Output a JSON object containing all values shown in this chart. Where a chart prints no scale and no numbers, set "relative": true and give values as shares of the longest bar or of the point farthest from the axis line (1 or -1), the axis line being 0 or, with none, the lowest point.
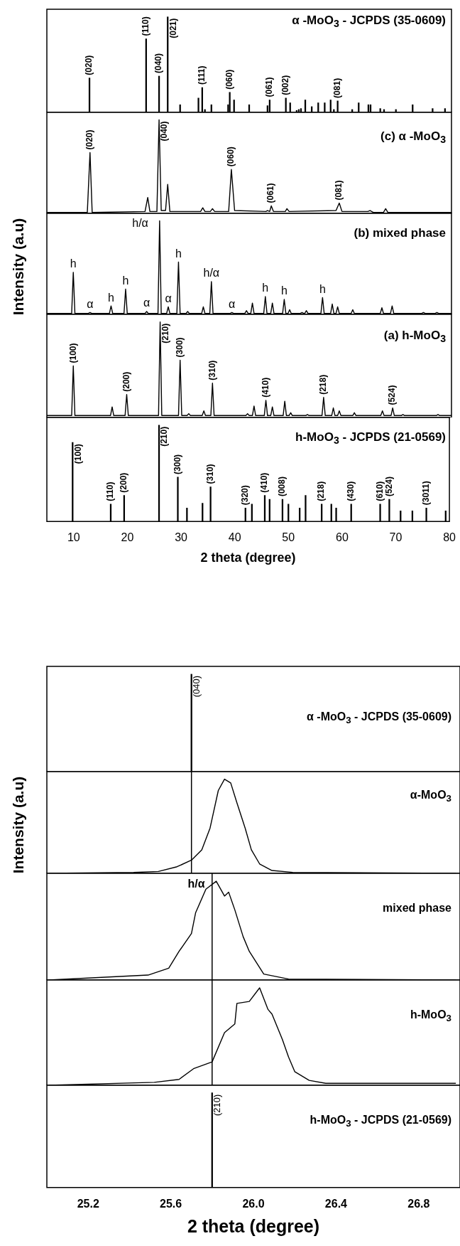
{
  "chart_data": [
    {
      "type": "bar",
      "relative": true,
      "title": "α -MoO$_{3}$ - JCPDS (35-0609)",
      "color": "#000000",
      "xlim": [
        5,
        80
      ],
      "tick_labels": false,
      "x": [
        12.9,
        23.4,
        25.8,
        27.4,
        29.7,
        33.1,
        33.8,
        34.3,
        35.5,
        38.6,
        38.9,
        39.7,
        42.5,
        45.9,
        46.3,
        49.3,
        50.1,
        51.3,
        51.7,
        52.1,
        52.9,
        54.1,
        55.3,
        56.5,
        57.6,
        58.2,
        58.9,
        61.6,
        62.8,
        64.6,
        65.0,
        66.8,
        67.5,
        69.7,
        72.8,
        76.5,
        78.8
      ],
      "values": [
        0.36,
        0.77,
        0.38,
        1,
        0.08,
        0.15,
        0.26,
        0.03,
        0.08,
        0.08,
        0.21,
        0.13,
        0.08,
        0.07,
        0.13,
        0.15,
        0.1,
        0.02,
        0.03,
        0.04,
        0.13,
        0.06,
        0.1,
        0.1,
        0.13,
        0.03,
        0.12,
        0.03,
        0.1,
        0.08,
        0.08,
        0.04,
        0.03,
        0.03,
        0.08,
        0.04,
        0.04
      ],
      "annotations": [
        {
          "text": "(020)",
          "x": 12.9,
          "y": 0.36
        },
        {
          "text": "(110)",
          "x": 23.4,
          "y": 0.77
        },
        {
          "text": "(040)",
          "x": 25.8,
          "y": 0.38
        },
        {
          "text": "(021)",
          "x": 27.4,
          "y": 1
        },
        {
          "text": "(111)",
          "x": 33.8,
          "y": 0.26
        },
        {
          "text": "(060)",
          "x": 38.9,
          "y": 0.21
        },
        {
          "text": "(061)",
          "x": 46.3,
          "y": 0.13
        },
        {
          "text": "(002)",
          "x": 49.3,
          "y": 0.15
        },
        {
          "text": "(081)",
          "x": 58.9,
          "y": 0.12
        }
      ]
    },
    {
      "type": "line",
      "relative": true,
      "title": "(c) α -MoO$_{3}$",
      "color": "#000000",
      "marker": "none",
      "xlim": [
        5,
        80
      ],
      "tick_labels": false,
      "x": [
        5,
        12.5,
        13.0,
        13.4,
        23.2,
        23.7,
        24.1,
        25.4,
        25.8,
        26.2,
        27.0,
        27.4,
        27.8,
        33.5,
        33.9,
        34.3,
        35.3,
        35.7,
        36.1,
        38.7,
        39.2,
        39.8,
        45.6,
        45.9,
        46.3,
        46.6,
        47.0,
        49.2,
        49.5,
        49.9,
        58.6,
        59.2,
        59.7,
        64.5,
        64.9,
        65.5,
        67.4,
        67.8,
        68.2,
        80
      ],
      "values": [
        0.01,
        0.01,
        0.65,
        0.01,
        0.02,
        0.17,
        0.02,
        0.02,
        1,
        0.03,
        0.03,
        0.31,
        0.02,
        0.02,
        0.06,
        0.02,
        0.02,
        0.05,
        0.02,
        0.02,
        0.47,
        0.03,
        0.02,
        0.03,
        0.02,
        0.08,
        0.02,
        0.02,
        0.05,
        0.02,
        0.03,
        0.11,
        0.02,
        0.02,
        0.03,
        0.01,
        0.01,
        0.05,
        0.01,
        0.01
      ],
      "annotations": [
        {
          "text": "(020)",
          "x": 13.0,
          "y": 0.65
        },
        {
          "text": "(040)",
          "x": 25.8,
          "y": 1
        },
        {
          "text": "(060)",
          "x": 39.2,
          "y": 0.47
        },
        {
          "text": "(061)",
          "x": 46.6,
          "y": 0.08
        },
        {
          "text": "(081)",
          "x": 59.2,
          "y": 0.11
        }
      ]
    },
    {
      "type": "line",
      "relative": true,
      "title": "(b) mixed phase",
      "ylabel": "Intensity (a.u)",
      "color": "#000000",
      "marker": "none",
      "xlim": [
        5,
        80
      ],
      "tick_labels": false,
      "x": [
        5,
        9.6,
        9.9,
        10.2,
        12.7,
        13.0,
        13.3,
        16.6,
        16.9,
        17.2,
        19.3,
        19.6,
        19.9,
        23.2,
        23.5,
        23.8,
        25.6,
        25.9,
        26.2,
        27.2,
        27.5,
        27.8,
        29.1,
        29.4,
        29.7,
        30.8,
        31.1,
        31.4,
        33.7,
        34.0,
        34.3,
        35.2,
        35.5,
        35.8,
        39.0,
        39.3,
        39.6,
        41.7,
        42.0,
        42.3,
        42.8,
        43.1,
        43.4,
        45.2,
        45.5,
        45.8,
        46.5,
        46.8,
        47.1,
        48.7,
        49.0,
        49.3,
        49.7,
        50.0,
        50.3,
        52.0,
        52.3,
        52.6,
        52.8,
        53.1,
        53.4,
        55.8,
        56.1,
        56.4,
        57.6,
        57.9,
        58.2,
        58.6,
        58.9,
        59.2,
        61.4,
        61.7,
        62.0,
        66.8,
        67.1,
        67.4,
        68.7,
        69.0,
        69.3,
        74.5,
        74.8,
        75.1,
        77.0,
        77.3,
        77.6,
        80
      ],
      "values": [
        0.01,
        0.01,
        0.45,
        0.01,
        0.01,
        0.02,
        0.01,
        0.01,
        0.09,
        0.01,
        0.01,
        0.27,
        0.01,
        0.01,
        0.03,
        0.01,
        0.01,
        1,
        0.01,
        0.01,
        0.08,
        0.01,
        0.01,
        0.56,
        0.01,
        0.01,
        0.03,
        0.01,
        0.01,
        0.08,
        0.01,
        0.01,
        0.35,
        0.01,
        0.01,
        0.02,
        0.01,
        0.01,
        0.04,
        0.01,
        0.01,
        0.12,
        0.01,
        0.01,
        0.19,
        0.01,
        0.01,
        0.12,
        0.01,
        0.01,
        0.16,
        0.01,
        0.01,
        0.05,
        0.01,
        0.01,
        0.02,
        0.01,
        0.01,
        0.04,
        0.01,
        0.01,
        0.18,
        0.01,
        0.01,
        0.11,
        0.01,
        0.01,
        0.08,
        0.01,
        0.01,
        0.05,
        0.01,
        0.01,
        0.07,
        0.01,
        0.01,
        0.09,
        0.01,
        0.01,
        0.02,
        0.01,
        0.01,
        0.02,
        0.01,
        0.01
      ],
      "annotations": [
        {
          "text": "h",
          "x": 9.9,
          "y": 0.45
        },
        {
          "text": "α",
          "x": 13.0,
          "y": 0.02
        },
        {
          "text": "h",
          "x": 16.9,
          "y": 0.09
        },
        {
          "text": "h",
          "x": 19.6,
          "y": 0.27
        },
        {
          "text": "α",
          "x": 23.5,
          "y": 0.03
        },
        {
          "text": "h/α",
          "x": 25.9,
          "y": 1
        },
        {
          "text": "α",
          "x": 27.5,
          "y": 0.08
        },
        {
          "text": "h",
          "x": 29.4,
          "y": 0.56
        },
        {
          "text": "h/α",
          "x": 35.5,
          "y": 0.35
        },
        {
          "text": "α",
          "x": 39.3,
          "y": 0.02
        },
        {
          "text": "h",
          "x": 45.5,
          "y": 0.19
        },
        {
          "text": "h",
          "x": 49.0,
          "y": 0.16
        },
        {
          "text": "h",
          "x": 56.1,
          "y": 0.18
        }
      ]
    },
    {
      "type": "line",
      "relative": true,
      "title": "(a) h-MoO$_{3}$",
      "color": "#000000",
      "marker": "none",
      "xlim": [
        5,
        80
      ],
      "tick_labels": false,
      "x": [
        5,
        9.6,
        9.9,
        10.2,
        16.8,
        17.1,
        17.4,
        19.5,
        19.8,
        20.1,
        25.7,
        26.0,
        26.3,
        29.4,
        29.7,
        30.0,
        31.0,
        31.3,
        31.6,
        33.8,
        34.1,
        34.4,
        35.4,
        35.7,
        36.0,
        41.9,
        42.2,
        42.5,
        43.1,
        43.4,
        43.7,
        45.3,
        45.6,
        45.9,
        46.5,
        46.8,
        47.1,
        48.8,
        49.1,
        49.4,
        49.9,
        50.2,
        50.5,
        53.0,
        53.3,
        53.6,
        56.0,
        56.3,
        56.6,
        57.8,
        58.1,
        58.4,
        58.9,
        59.2,
        59.5,
        61.7,
        62.0,
        62.3,
        66.9,
        67.2,
        67.5,
        68.8,
        69.1,
        69.4,
        70.7,
        71.0,
        71.3,
        77.2,
        77.5,
        77.8,
        80
      ],
      "values": [
        0.02,
        0.02,
        0.54,
        0.02,
        0.02,
        0.11,
        0.02,
        0.02,
        0.24,
        0.02,
        0.02,
        1,
        0.02,
        0.02,
        0.6,
        0.02,
        0.02,
        0.04,
        0.02,
        0.02,
        0.07,
        0.02,
        0.02,
        0.36,
        0.02,
        0.02,
        0.04,
        0.02,
        0.02,
        0.12,
        0.02,
        0.02,
        0.18,
        0.02,
        0.02,
        0.11,
        0.02,
        0.02,
        0.17,
        0.02,
        0.02,
        0.05,
        0.02,
        0.02,
        0.03,
        0.02,
        0.02,
        0.21,
        0.02,
        0.02,
        0.1,
        0.02,
        0.02,
        0.07,
        0.02,
        0.02,
        0.05,
        0.02,
        0.02,
        0.07,
        0.02,
        0.02,
        0.1,
        0.02,
        0.02,
        0.03,
        0.02,
        0.02,
        0.03,
        0.02,
        0.02
      ],
      "annotations": [
        {
          "text": "(100)",
          "x": 9.9,
          "y": 0.54
        },
        {
          "text": "(200)",
          "x": 19.8,
          "y": 0.24
        },
        {
          "text": "(210)",
          "x": 26.0,
          "y": 1
        },
        {
          "text": "(300)",
          "x": 29.7,
          "y": 0.6
        },
        {
          "text": "(310)",
          "x": 35.7,
          "y": 0.36
        },
        {
          "text": "(410)",
          "x": 45.6,
          "y": 0.18
        },
        {
          "text": "(218)",
          "x": 56.3,
          "y": 0.21
        },
        {
          "text": "(524)",
          "x": 69.1,
          "y": 0.1
        }
      ]
    },
    {
      "type": "bar",
      "relative": true,
      "title": "h-MoO$_{3}$ - JCPDS (21-0569)",
      "xlabel": "2 theta (degree)",
      "color": "#000000",
      "xlim": [
        5,
        80
      ],
      "xticks": [
        10,
        20,
        30,
        40,
        50,
        60,
        70,
        80
      ],
      "tick_labels": "x",
      "x": [
        9.8,
        16.9,
        19.4,
        25.9,
        29.4,
        31.1,
        34.0,
        35.5,
        42.0,
        43.2,
        45.6,
        46.5,
        48.9,
        50.0,
        52.1,
        53.2,
        56.2,
        58.0,
        58.9,
        61.7,
        67.1,
        68.8,
        70.9,
        73.1,
        75.7,
        79.3
      ],
      "values": [
        0.82,
        0.18,
        0.27,
        1,
        0.46,
        0.14,
        0.19,
        0.36,
        0.14,
        0.18,
        0.27,
        0.23,
        0.23,
        0.18,
        0.14,
        0.27,
        0.18,
        0.18,
        0.14,
        0.18,
        0.18,
        0.23,
        0.11,
        0.11,
        0.14,
        0.11
      ],
      "annotations": [
        {
          "text": "(100)",
          "x": 9.8,
          "y": 0.82
        },
        {
          "text": "(110)",
          "x": 16.9,
          "y": 0.18
        },
        {
          "text": "(200)",
          "x": 19.4,
          "y": 0.27
        },
        {
          "text": "(210)",
          "x": 25.9,
          "y": 1
        },
        {
          "text": "(300)",
          "x": 29.4,
          "y": 0.46
        },
        {
          "text": "(310)",
          "x": 35.5,
          "y": 0.36
        },
        {
          "text": "(320)",
          "x": 42.0,
          "y": 0.14
        },
        {
          "text": "(410)",
          "x": 45.6,
          "y": 0.27
        },
        {
          "text": "(008)",
          "x": 48.9,
          "y": 0.23
        },
        {
          "text": "(218)",
          "x": 56.2,
          "y": 0.18
        },
        {
          "text": "(430)",
          "x": 61.7,
          "y": 0.18
        },
        {
          "text": "(610)",
          "x": 67.1,
          "y": 0.18
        },
        {
          "text": "(524)",
          "x": 68.8,
          "y": 0.23
        },
        {
          "text": "(3011)",
          "x": 75.7,
          "y": 0.14
        }
      ]
    },
    {
      "type": "bar",
      "relative": true,
      "title": "α -MoO$_{3}$ - JCPDS (35-0609)",
      "color": "#000000",
      "xlim": [
        25,
        27
      ],
      "tick_labels": false,
      "x": [
        25.7
      ],
      "values": [
        1
      ],
      "annotations": [
        {
          "text": "(040)",
          "x": 25.7,
          "y": 1
        }
      ]
    },
    {
      "type": "line",
      "relative": true,
      "title": "α-MoO$_{3}$",
      "color": "#000000",
      "marker": "none",
      "xlim": [
        25,
        27
      ],
      "tick_labels": false,
      "x": [
        25.01,
        25.42,
        25.54,
        25.63,
        25.7,
        25.75,
        25.79,
        25.83,
        25.86,
        25.89,
        25.92,
        25.96,
        25.99,
        26.03,
        26.09,
        26.19,
        26.98
      ],
      "values": [
        0,
        0.01,
        0.02,
        0.07,
        0.14,
        0.25,
        0.48,
        0.88,
        1,
        0.96,
        0.75,
        0.48,
        0.25,
        0.1,
        0.03,
        0.01,
        0
      ],
      "ref_lines": [
        {
          "axis": "x",
          "value": 25.7
        }
      ]
    },
    {
      "type": "line",
      "relative": true,
      "title": "mixed phase",
      "ylabel": "Intensity (a.u)",
      "color": "#000000",
      "marker": "none",
      "xlim": [
        25,
        27
      ],
      "tick_labels": false,
      "x": [
        25.01,
        25.49,
        25.59,
        25.64,
        25.7,
        25.72,
        25.77,
        25.82,
        25.86,
        25.88,
        25.91,
        25.95,
        25.98,
        26.05,
        26.17,
        26.98
      ],
      "values": [
        0,
        0.05,
        0.12,
        0.29,
        0.47,
        0.68,
        0.92,
        1,
        0.85,
        0.89,
        0.71,
        0.44,
        0.29,
        0.06,
        0.01,
        0
      ],
      "ref_lines": [
        {
          "axis": "x",
          "value": 25.8
        }
      ],
      "annotations": [
        {
          "text": "h/α",
          "x": 25.82,
          "y": 1
        }
      ]
    },
    {
      "type": "line",
      "relative": true,
      "title": "h-MoO$_{3}$",
      "color": "#000000",
      "marker": "none",
      "xlim": [
        25,
        27
      ],
      "tick_labels": false,
      "x": [
        25.01,
        25.52,
        25.64,
        25.71,
        25.8,
        25.86,
        25.91,
        25.92,
        25.98,
        26.03,
        26.07,
        26.09,
        26.14,
        26.17,
        26.2,
        26.27,
        26.35,
        26.98
      ],
      "values": [
        0,
        0.03,
        0.06,
        0.17,
        0.24,
        0.54,
        0.63,
        0.84,
        0.86,
        1,
        0.78,
        0.73,
        0.47,
        0.29,
        0.14,
        0.05,
        0.02,
        0.02
      ],
      "ref_lines": [
        {
          "axis": "x",
          "value": 25.8
        }
      ]
    },
    {
      "type": "bar",
      "relative": true,
      "title": "h-MoO$_{3}$ - JCPDS (21-0569)",
      "xlabel": "2 theta (degree)",
      "color": "#000000",
      "xlim": [
        25,
        27
      ],
      "xticks": [
        25.2,
        25.6,
        {
          "value": 26,
          "label": "26.0"
        },
        26.4,
        26.8
      ],
      "tick_labels": "x",
      "x": [
        25.8
      ],
      "values": [
        1
      ],
      "annotations": [
        {
          "text": "(210)",
          "x": 25.8,
          "y": 1
        }
      ]
    }
  ]
}
